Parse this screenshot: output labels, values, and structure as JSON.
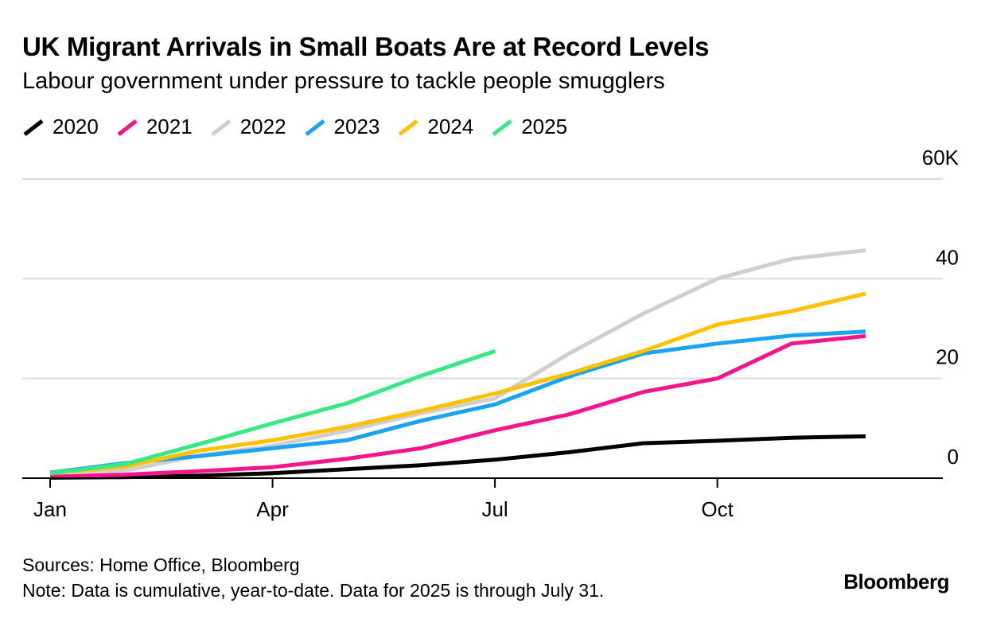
{
  "chart_data": {
    "type": "line",
    "title": "UK Migrant Arrivals in Small Boats Are at Record Levels",
    "subtitle": "Labour government under pressure to tackle people smugglers",
    "y_tick_labels": [
      "0",
      "20",
      "40",
      "60K"
    ],
    "y_ticks": [
      0,
      20,
      40,
      60
    ],
    "ylim": [
      0,
      60
    ],
    "x_tick_labels": [
      "Jan",
      "Apr",
      "Jul",
      "Oct"
    ],
    "x_ticks": [
      1,
      4,
      7,
      10
    ],
    "xlim": [
      1,
      13.2
    ],
    "grid": true,
    "legend_position": "top-left",
    "series": [
      {
        "name": "2020",
        "color": "#000000",
        "x": [
          1,
          2,
          3,
          4,
          5,
          6,
          7,
          8,
          9,
          10,
          11,
          12
        ],
        "y": [
          0.1,
          0.2,
          0.5,
          1.0,
          1.8,
          2.6,
          3.7,
          5.2,
          7.0,
          7.5,
          8.1,
          8.4
        ]
      },
      {
        "name": "2021",
        "color": "#f4148c",
        "x": [
          1,
          2,
          3,
          4,
          5,
          6,
          7,
          8,
          9,
          10,
          11,
          12
        ],
        "y": [
          0.3,
          0.7,
          1.4,
          2.2,
          3.9,
          6.0,
          9.6,
          12.8,
          17.3,
          20.0,
          27.0,
          28.5
        ]
      },
      {
        "name": "2022",
        "color": "#cfcfcf",
        "x": [
          1,
          2,
          3,
          4,
          5,
          6,
          7,
          8,
          9,
          10,
          11,
          12
        ],
        "y": [
          1.2,
          1.5,
          4.5,
          6.5,
          9.5,
          13.0,
          16.0,
          25.0,
          33.0,
          40.0,
          44.0,
          45.7
        ]
      },
      {
        "name": "2023",
        "color": "#1aa3ef",
        "x": [
          1,
          2,
          3,
          4,
          5,
          6,
          7,
          8,
          9,
          10,
          11,
          12
        ],
        "y": [
          1.1,
          3.0,
          4.4,
          6.0,
          7.6,
          11.5,
          14.8,
          20.4,
          25.0,
          27.0,
          28.6,
          29.4
        ]
      },
      {
        "name": "2024",
        "color": "#ffc100",
        "x": [
          1,
          2,
          3,
          4,
          5,
          6,
          7,
          8,
          9,
          10,
          11,
          12
        ],
        "y": [
          1.0,
          2.3,
          5.5,
          7.6,
          10.3,
          13.5,
          17.0,
          21.0,
          25.5,
          30.8,
          33.5,
          37.0
        ]
      },
      {
        "name": "2025",
        "color": "#38e885",
        "x": [
          1,
          2,
          3,
          4,
          5,
          6,
          7
        ],
        "y": [
          1.0,
          2.8,
          6.8,
          11.0,
          15.0,
          20.5,
          25.5
        ]
      }
    ]
  },
  "footer": {
    "sources": "Sources: Home Office, Bloomberg",
    "note": "Note: Data is cumulative, year-to-date. Data for 2025 is through July 31."
  },
  "brand": {
    "logo": "Bloomberg"
  }
}
